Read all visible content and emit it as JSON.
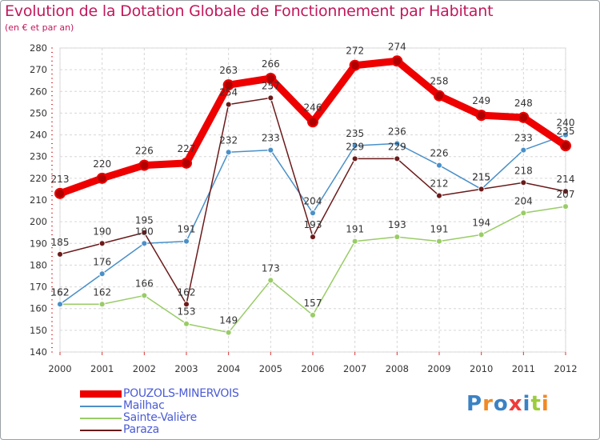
{
  "title": "Evolution de la Dotation Globale de Fonctionnement par Habitant",
  "subtitle": "(en € et par an)",
  "logo_text": "Proxiti",
  "chart_data": {
    "type": "line",
    "title": "Evolution de la Dotation Globale de Fonctionnement par Habitant",
    "subtitle": "(en € et par an)",
    "xlabel": "",
    "ylabel": "",
    "x": [
      "2000",
      "2001",
      "2002",
      "2003",
      "2004",
      "2005",
      "2006",
      "2007",
      "2008",
      "2009",
      "2010",
      "2011",
      "2012"
    ],
    "ylim": [
      140,
      280
    ],
    "yticks": [
      140,
      150,
      160,
      170,
      180,
      190,
      200,
      210,
      220,
      230,
      240,
      250,
      260,
      270,
      280
    ],
    "grid": true,
    "legend_position": "bottom-left",
    "series": [
      {
        "name": "POUZOLS-MINERVOIS",
        "color": "#ee0000",
        "values": [
          213,
          220,
          226,
          227,
          263,
          266,
          246,
          272,
          274,
          258,
          249,
          248,
          235
        ],
        "labels": [
          "213",
          "220",
          "226",
          "227",
          "263",
          "266",
          "246",
          "272",
          "274",
          "258",
          "249",
          "248",
          "235"
        ]
      },
      {
        "name": "Mailhac",
        "color": "#4a90c8",
        "values": [
          162,
          176,
          190,
          191,
          232,
          233,
          204,
          235,
          236,
          226,
          215,
          233,
          240
        ],
        "labels": [
          "162",
          "176",
          "190",
          "191",
          "232",
          "233",
          "204",
          "235",
          "236",
          "226",
          "215",
          "233",
          "240"
        ]
      },
      {
        "name": "Sainte-Valière",
        "color": "#99cc66",
        "values": [
          162,
          162,
          166,
          153,
          149,
          173,
          157,
          191,
          193,
          191,
          194,
          204,
          207
        ],
        "labels": [
          "162",
          "162",
          "166",
          "153",
          "149",
          "173",
          "157",
          "191",
          "193",
          "191",
          "194",
          "204",
          "207"
        ]
      },
      {
        "name": "Paraza",
        "color": "#6b1a1a",
        "values": [
          185,
          190,
          195,
          162,
          254,
          257,
          193,
          229,
          229,
          212,
          215,
          218,
          214
        ],
        "labels": [
          "185",
          "190",
          "195",
          "162",
          "254",
          "257",
          "193",
          "229",
          "229",
          "212",
          "215",
          "218",
          "214"
        ]
      }
    ]
  }
}
